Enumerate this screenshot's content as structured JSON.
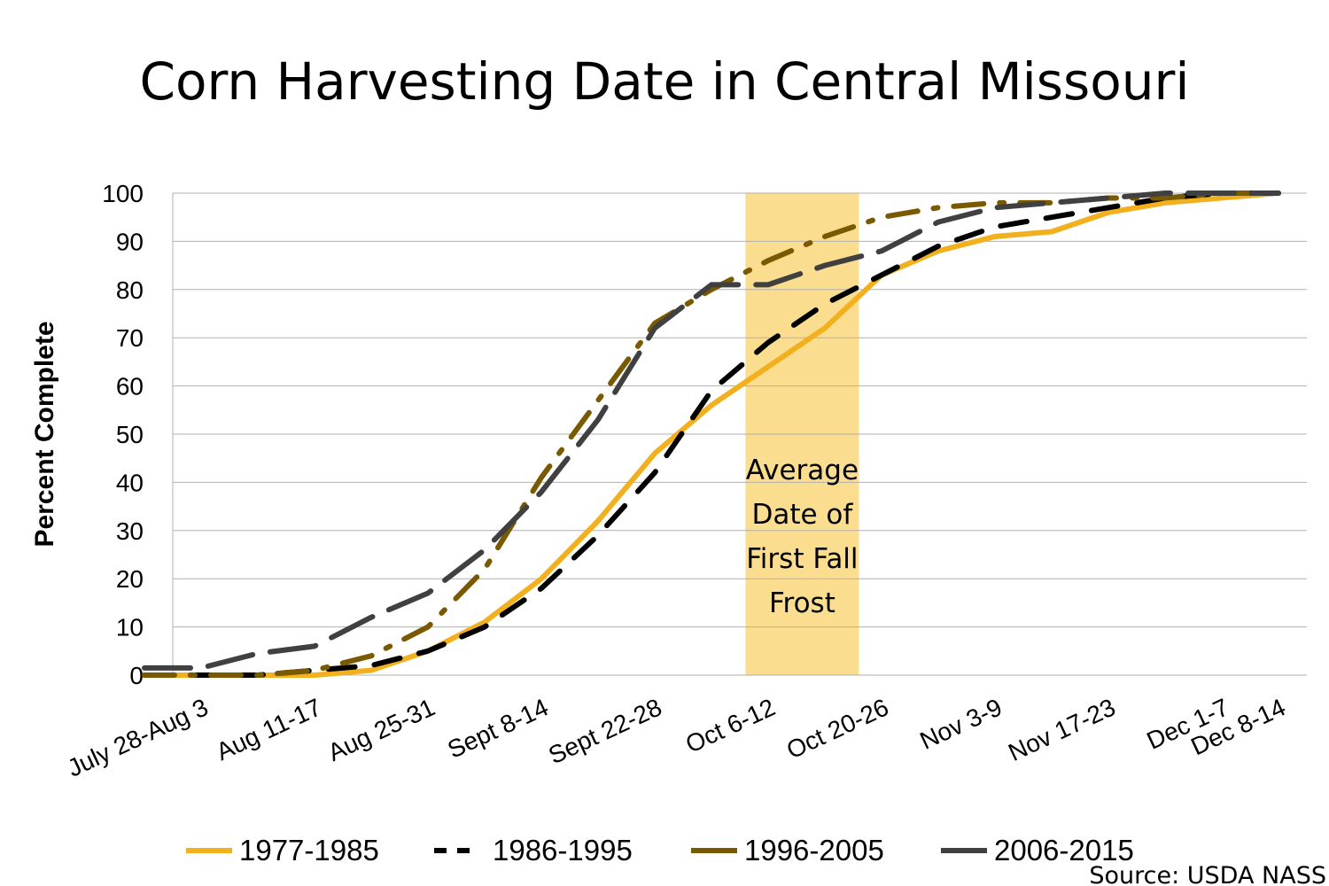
{
  "chart_data": {
    "type": "line",
    "title": "Corn Harvesting Date in Central Missouri",
    "ylabel": "Percent Complete",
    "xlabel": "",
    "ylim": [
      0,
      100
    ],
    "yticks": [
      0,
      10,
      20,
      30,
      40,
      50,
      60,
      70,
      80,
      90,
      100
    ],
    "grid": "horizontal",
    "x_tick_labels": [
      "July 28-Aug 3",
      "Aug 11-17",
      "Aug 25-31",
      "Sept 8-14",
      "Sept 22-28",
      "Oct 6-12",
      "Oct 20-26",
      "Nov 3-9",
      "Nov 17-23",
      "Dec 1-7",
      "Dec 8-14"
    ],
    "x_tick_positions": [
      1,
      3,
      5,
      7,
      9,
      11,
      13,
      15,
      17,
      19,
      20
    ],
    "x_range": [
      0.5,
      20.5
    ],
    "series": [
      {
        "name": "1977-1985",
        "color": "#F2B01E",
        "style": "solid",
        "values": [
          0,
          0,
          0,
          0,
          1,
          5,
          11,
          20,
          32,
          46,
          56,
          64,
          72,
          83,
          88,
          91,
          92,
          96,
          98,
          99,
          100
        ]
      },
      {
        "name": "1986-1995",
        "color": "#000000",
        "style": "dash",
        "values": [
          0,
          0,
          0,
          1,
          2,
          5,
          10,
          18,
          29,
          42,
          59,
          69,
          77,
          83,
          89,
          93,
          95,
          97,
          99,
          100,
          100
        ]
      },
      {
        "name": "1996-2005",
        "color": "#7A5A00",
        "style": "dashdot",
        "values": [
          0,
          0,
          0,
          1,
          4,
          10,
          22,
          41,
          57,
          73,
          80,
          86,
          91,
          95,
          97,
          98,
          98,
          99,
          99,
          100,
          100
        ]
      },
      {
        "name": "2006-2015",
        "color": "#404040",
        "style": "longdash",
        "values": [
          1.5,
          1.5,
          4.5,
          6,
          12,
          17,
          26,
          38,
          53,
          72,
          81,
          81,
          85,
          88,
          94,
          97,
          98,
          99,
          100,
          100,
          100
        ]
      }
    ],
    "annotation": {
      "label_lines": [
        "Average",
        "Date of",
        "First Fall",
        "Frost"
      ],
      "x_range": [
        10.6,
        12.6
      ],
      "color": "#FBDD8F"
    },
    "source": "Source: USDA NASS"
  }
}
